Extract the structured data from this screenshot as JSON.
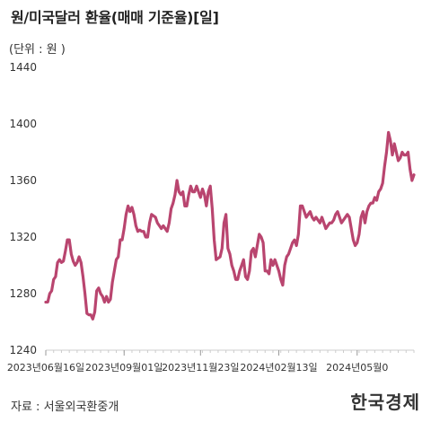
{
  "title": "원/미국달러 환율(매매 기준율)[일]",
  "unit": "(단위 : 원 )",
  "source": "자료 : 서울외국환중개",
  "brand": "한국경제",
  "colors": {
    "line": "#b9456f",
    "axis": "#cccccc",
    "text": "#333333"
  },
  "chart_data": {
    "type": "line",
    "title": "원/미국달러 환율(매매 기준율)[일]",
    "ylabel": "(단위 : 원 )",
    "ylim": [
      1240,
      1440
    ],
    "y_ticks": [
      1240,
      1280,
      1320,
      1360,
      1400,
      1440
    ],
    "x_tick_labels": [
      "2023년06월16일",
      "2023년09월01일",
      "2023년11월23일",
      "2024년02월13일",
      "2024년05월0"
    ],
    "x_tick_positions": [
      0,
      40,
      79,
      119,
      159
    ],
    "grid": false,
    "series": [
      {
        "values": [
          1274,
          1274,
          1280,
          1282,
          1290,
          1292,
          1302,
          1304,
          1302,
          1303,
          1310,
          1318,
          1318,
          1308,
          1303,
          1300,
          1302,
          1306,
          1302,
          1292,
          1280,
          1266,
          1265,
          1265,
          1262,
          1267,
          1282,
          1284,
          1280,
          1278,
          1274,
          1278,
          1274,
          1276,
          1288,
          1296,
          1304,
          1306,
          1318,
          1318,
          1326,
          1336,
          1342,
          1338,
          1341,
          1336,
          1328,
          1324,
          1325,
          1324,
          1324,
          1320,
          1320,
          1330,
          1336,
          1335,
          1334,
          1330,
          1328,
          1326,
          1328,
          1326,
          1324,
          1330,
          1340,
          1344,
          1350,
          1360,
          1352,
          1350,
          1352,
          1342,
          1342,
          1350,
          1356,
          1352,
          1352,
          1356,
          1352,
          1348,
          1354,
          1350,
          1342,
          1352,
          1356,
          1340,
          1318,
          1304,
          1305,
          1306,
          1312,
          1330,
          1336,
          1312,
          1308,
          1300,
          1296,
          1290,
          1290,
          1296,
          1300,
          1304,
          1292,
          1290,
          1296,
          1310,
          1312,
          1306,
          1314,
          1322,
          1320,
          1316,
          1296,
          1296,
          1294,
          1304,
          1300,
          1304,
          1300,
          1296,
          1290,
          1286,
          1300,
          1306,
          1308,
          1312,
          1316,
          1318,
          1314,
          1322,
          1342,
          1342,
          1338,
          1334,
          1336,
          1338,
          1334,
          1332,
          1334,
          1332,
          1330,
          1334,
          1330,
          1326,
          1328,
          1330,
          1330,
          1332,
          1336,
          1338,
          1334,
          1330,
          1332,
          1334,
          1336,
          1334,
          1326,
          1318,
          1314,
          1316,
          1322,
          1334,
          1338,
          1330,
          1338,
          1342,
          1344,
          1344,
          1348,
          1346,
          1352,
          1354,
          1358,
          1370,
          1380,
          1394,
          1388,
          1378,
          1386,
          1380,
          1374,
          1376,
          1380,
          1378,
          1378,
          1380,
          1368,
          1360,
          1364
        ]
      }
    ]
  }
}
